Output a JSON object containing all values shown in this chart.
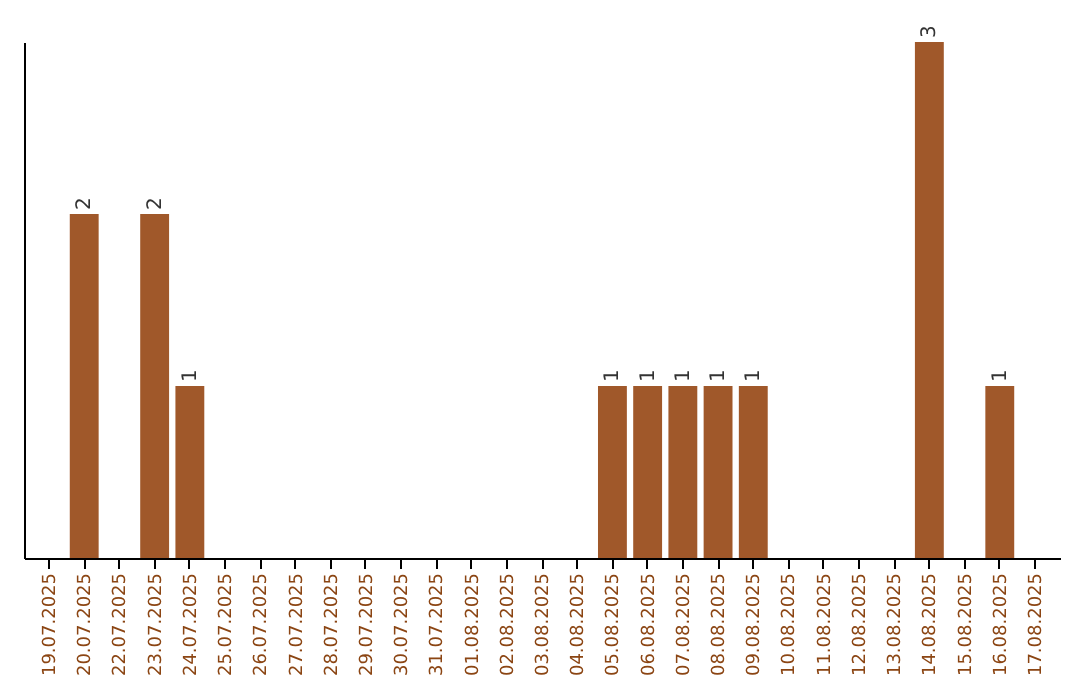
{
  "chart_data": {
    "type": "bar",
    "categories": [
      "19.07.2025",
      "20.07.2025",
      "22.07.2025",
      "23.07.2025",
      "24.07.2025",
      "25.07.2025",
      "26.07.2025",
      "27.07.2025",
      "28.07.2025",
      "29.07.2025",
      "30.07.2025",
      "31.07.2025",
      "01.08.2025",
      "02.08.2025",
      "03.08.2025",
      "04.08.2025",
      "05.08.2025",
      "06.08.2025",
      "07.08.2025",
      "08.08.2025",
      "09.08.2025",
      "10.08.2025",
      "11.08.2025",
      "12.08.2025",
      "13.08.2025",
      "14.08.2025",
      "15.08.2025",
      "16.08.2025",
      "17.08.2025"
    ],
    "values": [
      0,
      2,
      0,
      2,
      1,
      0,
      0,
      0,
      0,
      0,
      0,
      0,
      0,
      0,
      0,
      0,
      1,
      1,
      1,
      1,
      1,
      0,
      0,
      0,
      0,
      3,
      0,
      1,
      0
    ],
    "value_labels": [
      null,
      "2",
      null,
      "2",
      "1",
      null,
      null,
      null,
      null,
      null,
      null,
      null,
      null,
      null,
      null,
      null,
      "1",
      "1",
      "1",
      "1",
      "1",
      null,
      null,
      null,
      null,
      "3",
      null,
      "1",
      null
    ],
    "color": "#a0582a",
    "tick_labels": "x"
  }
}
